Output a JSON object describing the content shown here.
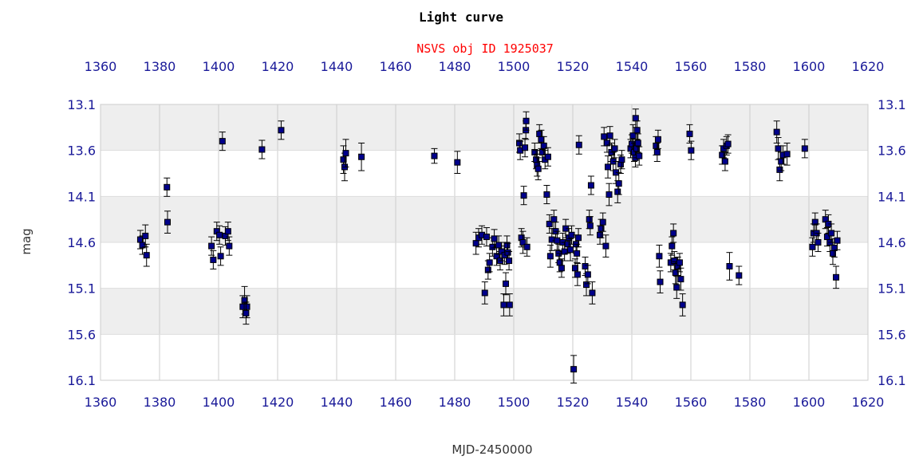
{
  "chart_data": {
    "type": "scatter",
    "title": "Light curve",
    "subtitle": "NSVS obj ID 1925037",
    "xlabel": "MJD-2450000",
    "ylabel": "mag",
    "xlim": [
      1360,
      1620
    ],
    "ylim": [
      13.1,
      16.1
    ],
    "y_inverted": true,
    "x_ticks": [
      1360,
      1380,
      1400,
      1420,
      1440,
      1460,
      1480,
      1500,
      1520,
      1540,
      1560,
      1580,
      1600,
      1620
    ],
    "y_ticks": [
      "13.1",
      "13.6",
      "14.1",
      "14.6",
      "15.1",
      "15.6",
      "16.1"
    ],
    "grid": true,
    "error_bars": true,
    "marker_color": "#00008b",
    "band_color": "#eeeeee",
    "points": [
      [
        1373.5,
        14.57,
        0.1
      ],
      [
        1374.2,
        14.63,
        0.1
      ],
      [
        1375.2,
        14.53,
        0.12
      ],
      [
        1375.6,
        14.74,
        0.12
      ],
      [
        1382.5,
        14.0,
        0.1
      ],
      [
        1382.7,
        14.38,
        0.12
      ],
      [
        1397.6,
        14.64,
        0.1
      ],
      [
        1398.2,
        14.79,
        0.1
      ],
      [
        1399.4,
        14.48,
        0.1
      ],
      [
        1400.3,
        14.52,
        0.1
      ],
      [
        1400.7,
        14.75,
        0.1
      ],
      [
        1401.3,
        13.5,
        0.1
      ],
      [
        1402.3,
        14.53,
        0.1
      ],
      [
        1403.2,
        14.48,
        0.1
      ],
      [
        1403.6,
        14.64,
        0.1
      ],
      [
        1408.2,
        15.3,
        0.12
      ],
      [
        1408.8,
        15.23,
        0.15
      ],
      [
        1409.6,
        15.3,
        0.12
      ],
      [
        1409.3,
        15.37,
        0.12
      ],
      [
        1414.7,
        13.59,
        0.1
      ],
      [
        1421.2,
        13.38,
        0.1
      ],
      [
        1442.3,
        13.7,
        0.15
      ],
      [
        1442.7,
        13.78,
        0.15
      ],
      [
        1443.1,
        13.63,
        0.15
      ],
      [
        1448.4,
        13.67,
        0.15
      ],
      [
        1473.1,
        13.66,
        0.08
      ],
      [
        1480.9,
        13.73,
        0.12
      ],
      [
        1487.2,
        14.61,
        0.12
      ],
      [
        1488.1,
        14.55,
        0.1
      ],
      [
        1489.2,
        14.52,
        0.1
      ],
      [
        1490.2,
        15.15,
        0.12
      ],
      [
        1490.8,
        14.54,
        0.1
      ],
      [
        1491.3,
        14.9,
        0.1
      ],
      [
        1491.8,
        14.82,
        0.1
      ],
      [
        1492.8,
        14.65,
        0.1
      ],
      [
        1493.4,
        14.56,
        0.1
      ],
      [
        1494.2,
        14.75,
        0.1
      ],
      [
        1494.9,
        14.63,
        0.1
      ],
      [
        1495.4,
        14.8,
        0.1
      ],
      [
        1495.9,
        14.7,
        0.1
      ],
      [
        1496.6,
        15.28,
        0.12
      ],
      [
        1496.9,
        14.74,
        0.1
      ],
      [
        1497.3,
        15.05,
        0.12
      ],
      [
        1497.7,
        14.63,
        0.1
      ],
      [
        1498.0,
        14.71,
        0.1
      ],
      [
        1498.4,
        14.8,
        0.1
      ],
      [
        1498.6,
        15.28,
        0.12
      ],
      [
        1501.9,
        13.52,
        0.1
      ],
      [
        1502.2,
        13.6,
        0.1
      ],
      [
        1502.6,
        14.55,
        0.1
      ],
      [
        1503.1,
        14.6,
        0.12
      ],
      [
        1503.4,
        14.09,
        0.1
      ],
      [
        1503.8,
        13.57,
        0.1
      ],
      [
        1504.1,
        13.38,
        0.1
      ],
      [
        1504.5,
        14.65,
        0.1
      ],
      [
        1504.2,
        13.28,
        0.1
      ],
      [
        1507.1,
        13.62,
        0.1
      ],
      [
        1507.6,
        13.7,
        0.1
      ],
      [
        1507.9,
        13.76,
        0.12
      ],
      [
        1508.3,
        13.8,
        0.12
      ],
      [
        1508.7,
        13.42,
        0.1
      ],
      [
        1509.3,
        13.48,
        0.1
      ],
      [
        1509.7,
        13.62,
        0.1
      ],
      [
        1510.2,
        13.55,
        0.1
      ],
      [
        1510.6,
        13.7,
        0.1
      ],
      [
        1511.2,
        14.08,
        0.1
      ],
      [
        1511.6,
        13.67,
        0.1
      ],
      [
        1512.1,
        14.4,
        0.1
      ],
      [
        1512.4,
        14.75,
        0.12
      ],
      [
        1512.9,
        14.57,
        0.12
      ],
      [
        1513.6,
        14.35,
        0.1
      ],
      [
        1514.2,
        14.48,
        0.1
      ],
      [
        1514.7,
        14.58,
        0.1
      ],
      [
        1515.2,
        14.72,
        0.1
      ],
      [
        1515.6,
        14.82,
        0.1
      ],
      [
        1516.2,
        14.88,
        0.1
      ],
      [
        1516.6,
        14.6,
        0.1
      ],
      [
        1517.2,
        14.7,
        0.1
      ],
      [
        1517.6,
        14.45,
        0.1
      ],
      [
        1518.3,
        14.62,
        0.1
      ],
      [
        1518.7,
        14.55,
        0.1
      ],
      [
        1519.2,
        14.68,
        0.12
      ],
      [
        1519.6,
        14.52,
        0.1
      ],
      [
        1520.3,
        15.98,
        0.15
      ],
      [
        1520.8,
        14.88,
        0.1
      ],
      [
        1521.1,
        14.62,
        0.1
      ],
      [
        1521.4,
        14.72,
        0.1
      ],
      [
        1521.6,
        14.95,
        0.12
      ],
      [
        1521.9,
        14.55,
        0.1
      ],
      [
        1522.1,
        13.54,
        0.1
      ],
      [
        1524.2,
        14.86,
        0.1
      ],
      [
        1524.6,
        15.06,
        0.12
      ],
      [
        1525.1,
        14.95,
        0.1
      ],
      [
        1525.6,
        14.35,
        0.1
      ],
      [
        1525.9,
        14.42,
        0.1
      ],
      [
        1526.2,
        13.98,
        0.1
      ],
      [
        1526.6,
        15.15,
        0.12
      ],
      [
        1529.2,
        14.52,
        0.1
      ],
      [
        1529.6,
        14.45,
        0.1
      ],
      [
        1530.2,
        14.38,
        0.1
      ],
      [
        1530.6,
        13.45,
        0.1
      ],
      [
        1531.2,
        14.64,
        0.12
      ],
      [
        1531.6,
        13.52,
        0.1
      ],
      [
        1531.9,
        13.78,
        0.12
      ],
      [
        1532.3,
        14.08,
        0.12
      ],
      [
        1532.6,
        13.44,
        0.1
      ],
      [
        1533.1,
        13.62,
        0.1
      ],
      [
        1533.7,
        13.72,
        0.1
      ],
      [
        1534.2,
        13.58,
        0.1
      ],
      [
        1534.6,
        13.84,
        0.12
      ],
      [
        1535.2,
        14.05,
        0.12
      ],
      [
        1535.6,
        13.96,
        0.12
      ],
      [
        1536.2,
        13.75,
        0.1
      ],
      [
        1536.6,
        13.7,
        0.1
      ],
      [
        1539.6,
        13.58,
        0.1
      ],
      [
        1540.0,
        13.53,
        0.1
      ],
      [
        1540.4,
        13.44,
        0.12
      ],
      [
        1540.8,
        13.62,
        0.1
      ],
      [
        1541.2,
        13.68,
        0.1
      ],
      [
        1541.6,
        13.58,
        0.1
      ],
      [
        1542.1,
        13.52,
        0.1
      ],
      [
        1542.5,
        13.66,
        0.1
      ],
      [
        1541.3,
        13.25,
        0.1
      ],
      [
        1541.8,
        13.38,
        0.1
      ],
      [
        1548.2,
        13.55,
        0.1
      ],
      [
        1548.6,
        13.62,
        0.1
      ],
      [
        1548.9,
        13.48,
        0.1
      ],
      [
        1549.3,
        14.75,
        0.12
      ],
      [
        1549.6,
        15.03,
        0.12
      ],
      [
        1553.2,
        14.82,
        0.1
      ],
      [
        1553.6,
        14.64,
        0.1
      ],
      [
        1554.1,
        14.5,
        0.1
      ],
      [
        1554.4,
        14.8,
        0.1
      ],
      [
        1554.8,
        14.93,
        0.12
      ],
      [
        1555.2,
        15.09,
        0.12
      ],
      [
        1555.6,
        14.86,
        0.1
      ],
      [
        1556.2,
        14.82,
        0.1
      ],
      [
        1556.6,
        15.0,
        0.12
      ],
      [
        1557.2,
        15.28,
        0.12
      ],
      [
        1559.6,
        13.42,
        0.1
      ],
      [
        1560.1,
        13.6,
        0.1
      ],
      [
        1570.6,
        13.65,
        0.1
      ],
      [
        1571.1,
        13.58,
        0.1
      ],
      [
        1571.6,
        13.72,
        0.1
      ],
      [
        1572.1,
        13.55,
        0.1
      ],
      [
        1572.6,
        13.53,
        0.1
      ],
      [
        1573.1,
        14.86,
        0.15
      ],
      [
        1576.3,
        14.96,
        0.1
      ],
      [
        1589.1,
        13.4,
        0.12
      ],
      [
        1589.6,
        13.58,
        0.12
      ],
      [
        1590.1,
        13.81,
        0.12
      ],
      [
        1590.6,
        13.72,
        0.1
      ],
      [
        1591.2,
        13.65,
        0.1
      ],
      [
        1592.6,
        13.64,
        0.12
      ],
      [
        1598.6,
        13.58,
        0.1
      ],
      [
        1601.2,
        14.65,
        0.1
      ],
      [
        1601.6,
        14.5,
        0.1
      ],
      [
        1602.1,
        14.38,
        0.1
      ],
      [
        1602.6,
        14.5,
        0.1
      ],
      [
        1603.1,
        14.6,
        0.1
      ],
      [
        1605.6,
        14.35,
        0.1
      ],
      [
        1606.2,
        14.54,
        0.1
      ],
      [
        1606.6,
        14.4,
        0.1
      ],
      [
        1607.1,
        14.6,
        0.1
      ],
      [
        1607.6,
        14.5,
        0.1
      ],
      [
        1608.1,
        14.72,
        0.12
      ],
      [
        1608.6,
        14.66,
        0.1
      ],
      [
        1609.2,
        14.98,
        0.12
      ],
      [
        1609.6,
        14.58,
        0.1
      ]
    ]
  }
}
